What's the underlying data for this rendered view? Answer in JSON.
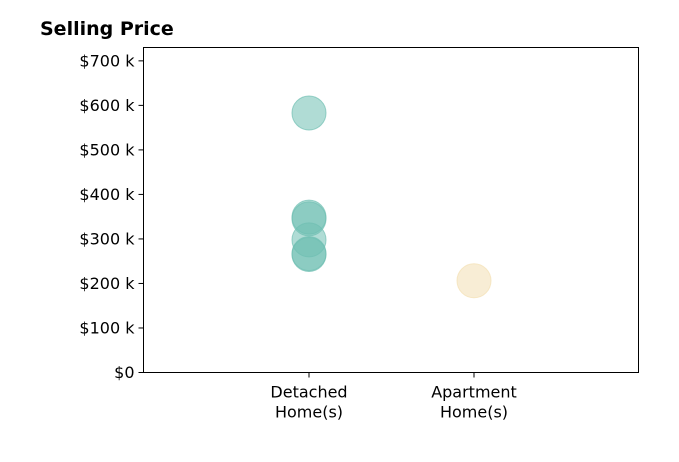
{
  "chart_data": {
    "type": "scatter",
    "title": "Selling Price",
    "xlabel": "",
    "ylabel": "",
    "categories": [
      "Detached\nHome(s)",
      "Apartment\nHome(s)"
    ],
    "ylim": [
      0,
      730000
    ],
    "yticks": [
      {
        "value": 0,
        "label": "$0"
      },
      {
        "value": 100000,
        "label": "$100 k"
      },
      {
        "value": 200000,
        "label": "$200 k"
      },
      {
        "value": 300000,
        "label": "$300 k"
      },
      {
        "value": 400000,
        "label": "$400 k"
      },
      {
        "value": 500000,
        "label": "$500 k"
      },
      {
        "value": 600000,
        "label": "$600 k"
      },
      {
        "value": 700000,
        "label": "$700 k"
      }
    ],
    "series": [
      {
        "category": "Detached\nHome(s)",
        "color": "#6fbfb2",
        "values": [
          583000,
          349000,
          345000,
          298000,
          267000,
          265000
        ]
      },
      {
        "category": "Apartment\nHome(s)",
        "color": "#f3dfb2",
        "values": [
          206000
        ]
      }
    ],
    "grid": false,
    "legend": "none"
  }
}
